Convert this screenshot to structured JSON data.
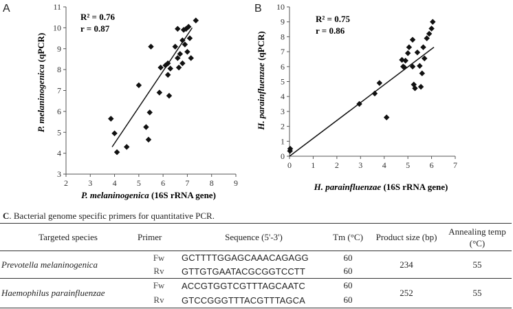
{
  "chart_data": [
    {
      "type": "scatter",
      "panel": "A",
      "title": "",
      "xlabel": "P. melaninogenica (16S rRNA gene)",
      "xlabel_italic": "P. melaninogenica",
      "xlabel_rest": " (16S rRNA gene)",
      "ylabel": "P. melaninogenica (qPCR)",
      "ylabel_italic": "P. melaninogenica",
      "ylabel_rest": " (qPCR)",
      "xlim": [
        2,
        9
      ],
      "ylim": [
        3,
        11
      ],
      "xticks": [
        2,
        3,
        4,
        5,
        6,
        7,
        8,
        9
      ],
      "yticks": [
        3,
        4,
        5,
        6,
        7,
        8,
        9,
        10,
        11
      ],
      "annotations": [
        "R² = 0.76",
        "r = 0.87"
      ],
      "trendline": {
        "x": [
          3.9,
          7.2
        ],
        "y": [
          4.3,
          10.0
        ]
      },
      "points": [
        [
          3.85,
          5.65
        ],
        [
          4.0,
          4.95
        ],
        [
          4.1,
          4.05
        ],
        [
          4.5,
          4.3
        ],
        [
          5.0,
          7.25
        ],
        [
          5.3,
          5.25
        ],
        [
          5.4,
          4.65
        ],
        [
          5.45,
          5.95
        ],
        [
          5.5,
          9.1
        ],
        [
          5.85,
          6.9
        ],
        [
          5.9,
          8.1
        ],
        [
          6.1,
          8.2
        ],
        [
          6.2,
          8.3
        ],
        [
          6.2,
          7.75
        ],
        [
          6.25,
          6.75
        ],
        [
          6.3,
          8.05
        ],
        [
          6.5,
          9.1
        ],
        [
          6.6,
          8.55
        ],
        [
          6.6,
          9.95
        ],
        [
          6.65,
          8.1
        ],
        [
          6.7,
          8.75
        ],
        [
          6.8,
          9.4
        ],
        [
          6.8,
          8.3
        ],
        [
          6.85,
          9.9
        ],
        [
          6.9,
          9.2
        ],
        [
          6.95,
          9.95
        ],
        [
          7.0,
          8.85
        ],
        [
          7.05,
          10.05
        ],
        [
          7.1,
          9.5
        ],
        [
          7.15,
          8.55
        ],
        [
          7.35,
          10.35
        ]
      ]
    },
    {
      "type": "scatter",
      "panel": "B",
      "title": "",
      "xlabel": "H. parainfluenzae (16S rRNA gene)",
      "xlabel_italic": "H. parainfluenzae",
      "xlabel_rest": " (16S rRNA gene)",
      "ylabel": "H. parainfluenzae (qPCR)",
      "ylabel_italic": "H. parainfluenzae",
      "ylabel_rest": " (qPCR)",
      "xlim": [
        0,
        7
      ],
      "ylim": [
        0,
        10
      ],
      "xticks": [
        0,
        1,
        2,
        3,
        4,
        5,
        6,
        7
      ],
      "yticks": [
        0,
        1,
        2,
        3,
        4,
        5,
        6,
        7,
        8,
        9,
        10
      ],
      "annotations": [
        "R² = 0.75",
        "r = 0.86"
      ],
      "trendline": {
        "x": [
          0.0,
          6.1
        ],
        "y": [
          0.0,
          7.3
        ]
      },
      "points": [
        [
          0.02,
          0.35
        ],
        [
          0.03,
          0.5
        ],
        [
          2.95,
          3.5
        ],
        [
          3.6,
          4.2
        ],
        [
          3.8,
          4.9
        ],
        [
          4.1,
          2.6
        ],
        [
          4.75,
          6.45
        ],
        [
          4.8,
          6.0
        ],
        [
          4.85,
          5.95
        ],
        [
          4.9,
          6.4
        ],
        [
          5.0,
          6.9
        ],
        [
          5.05,
          7.3
        ],
        [
          5.2,
          7.8
        ],
        [
          5.2,
          6.0
        ],
        [
          5.25,
          4.8
        ],
        [
          5.3,
          4.55
        ],
        [
          5.4,
          6.95
        ],
        [
          5.5,
          6.05
        ],
        [
          5.55,
          4.65
        ],
        [
          5.6,
          5.55
        ],
        [
          5.65,
          7.3
        ],
        [
          5.7,
          6.55
        ],
        [
          5.8,
          7.9
        ],
        [
          5.9,
          8.2
        ],
        [
          6.0,
          8.55
        ],
        [
          6.05,
          9.0
        ]
      ]
    }
  ],
  "table": {
    "caption_letter": "C",
    "caption_text": ". Bacterial genome specific primers for quantitative PCR.",
    "headers": {
      "species": "Targeted species",
      "primer": "Primer",
      "sequence": "Sequence (5'-3')",
      "tm": "Tm (°C)",
      "size": "Product size (bp)",
      "anneal": "Annealing temp (°C)"
    },
    "rows": [
      {
        "species": "Prevotella melaninogenica",
        "product_size": "234",
        "annealing": "55",
        "primers": [
          {
            "primer": "Fw",
            "sequence": "GCTTTTGGAGCAAACAGAGG",
            "tm": "60"
          },
          {
            "primer": "Rv",
            "sequence": "GTTGTGAATACGCGGTCCTT",
            "tm": "60"
          }
        ]
      },
      {
        "species": "Haemophilus parainfluenzae",
        "product_size": "252",
        "annealing": "55",
        "primers": [
          {
            "primer": "Fw",
            "sequence": "ACCGTGGTCGTTTAGCAATC",
            "tm": "60"
          },
          {
            "primer": "Rv",
            "sequence": "GTCCGGGTTTACGTTTAGCA",
            "tm": "60"
          }
        ]
      }
    ]
  }
}
